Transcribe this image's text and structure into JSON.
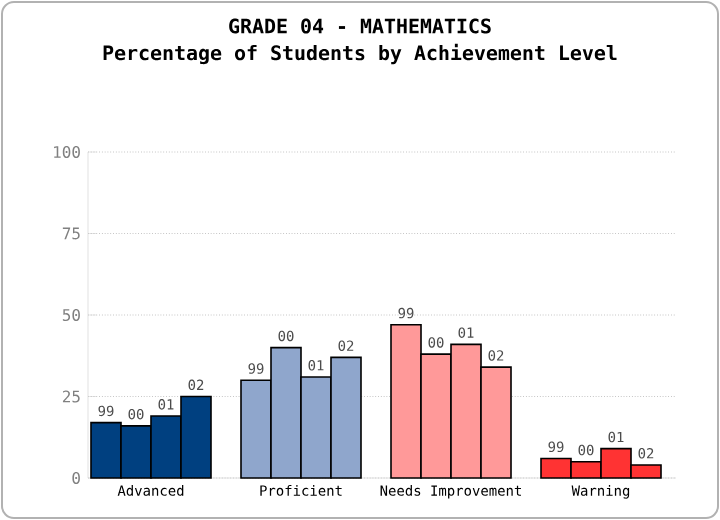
{
  "chart_data": {
    "type": "bar",
    "title": "GRADE 04 - MATHEMATICS",
    "subtitle": "Percentage of Students by Achievement Level",
    "categories": [
      "Advanced",
      "Proficient",
      "Needs Improvement",
      "Warning"
    ],
    "series": [
      {
        "name": "99",
        "colors": [
          "#004080",
          "#8fa6cc",
          "#ff9999",
          "#ff3333"
        ],
        "values": [
          17,
          30,
          47,
          6
        ]
      },
      {
        "name": "00",
        "colors": [
          "#004080",
          "#8fa6cc",
          "#ff9999",
          "#ff3333"
        ],
        "values": [
          16,
          40,
          38,
          5
        ]
      },
      {
        "name": "01",
        "colors": [
          "#004080",
          "#8fa6cc",
          "#ff9999",
          "#ff3333"
        ],
        "values": [
          19,
          31,
          41,
          9
        ]
      },
      {
        "name": "02",
        "colors": [
          "#004080",
          "#8fa6cc",
          "#ff9999",
          "#ff3333"
        ],
        "values": [
          25,
          37,
          34,
          4
        ]
      }
    ],
    "ylim": [
      0,
      100
    ],
    "yticks": [
      0,
      25,
      50,
      75,
      100
    ],
    "grid": "y"
  }
}
